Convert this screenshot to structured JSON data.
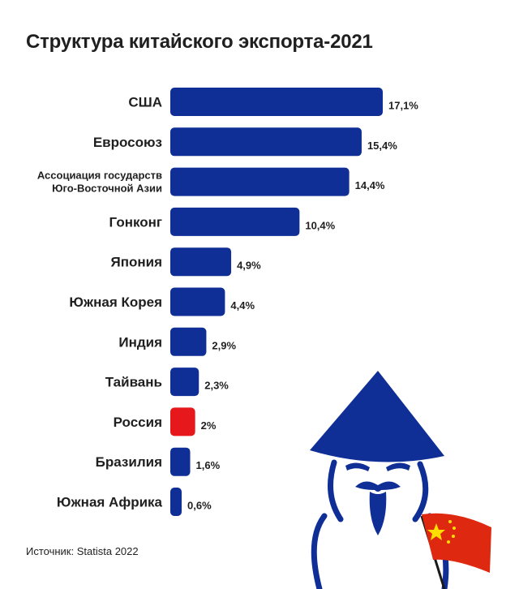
{
  "title": "Структура китайского экспорта-2021",
  "source": "Источник: Statista 2022",
  "colors": {
    "bar": "#0f2e96",
    "highlight": "#e6181b",
    "flag_red": "#de2910",
    "flag_star": "#ffde00"
  },
  "chart_data": {
    "type": "bar",
    "orientation": "horizontal",
    "title": "Структура китайского экспорта-2021",
    "unit": "%",
    "categories": [
      [
        "США"
      ],
      [
        "Евросоюз"
      ],
      [
        "Ассоциация государств",
        "Юго-Восточной Азии"
      ],
      [
        "Гонконг"
      ],
      [
        "Япония"
      ],
      [
        "Южная Корея"
      ],
      [
        "Индия"
      ],
      [
        "Тайвань"
      ],
      [
        "Россия"
      ],
      [
        "Бразилия"
      ],
      [
        "Южная Африка"
      ]
    ],
    "values": [
      17.1,
      15.4,
      14.4,
      10.4,
      4.9,
      4.4,
      2.9,
      2.3,
      2.0,
      1.6,
      0.6
    ],
    "value_labels": [
      "17,1%",
      "15,4%",
      "14,4%",
      "10,4%",
      "4,9%",
      "4,4%",
      "2,9%",
      "2,3%",
      "2%",
      "1,6%",
      "0,6%"
    ],
    "highlight": [
      "Россия"
    ],
    "xlim": [
      0,
      17.1
    ],
    "grid": false,
    "legend": "none"
  }
}
